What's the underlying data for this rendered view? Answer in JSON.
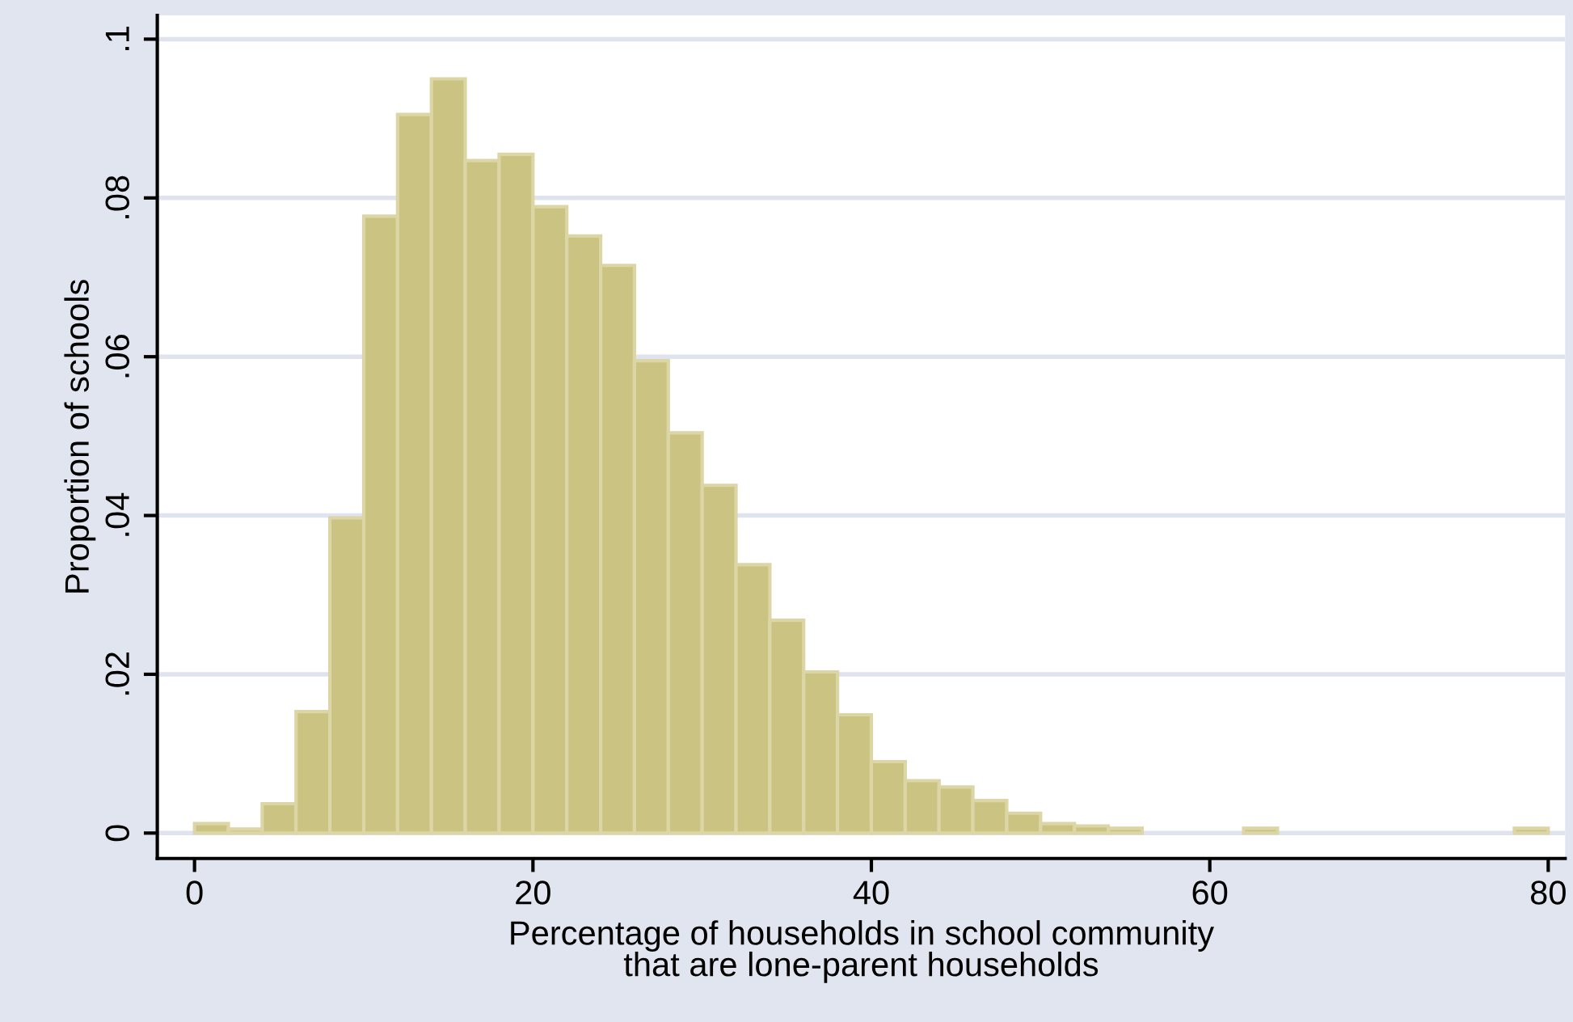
{
  "chart_data": {
    "type": "histogram",
    "xlabel": "Percentage of households in school community\nthat are lone-parent households",
    "ylabel": "Proportion of schools",
    "bins": [
      0,
      2,
      4,
      6,
      8,
      10,
      12,
      14,
      16,
      18,
      20,
      22,
      24,
      26,
      28,
      30,
      32,
      34,
      36,
      38,
      40,
      42,
      44,
      46,
      48,
      50,
      52,
      54,
      56,
      58,
      60,
      62,
      64,
      66,
      68,
      70,
      72,
      74,
      76,
      78,
      80
    ],
    "values": [
      0.0012,
      0.0005,
      0.0037,
      0.0153,
      0.0397,
      0.0777,
      0.0905,
      0.095,
      0.0847,
      0.0855,
      0.0789,
      0.0752,
      0.0715,
      0.0595,
      0.0504,
      0.0438,
      0.0338,
      0.0268,
      0.0203,
      0.0149,
      0.009,
      0.0066,
      0.0058,
      0.0041,
      0.0025,
      0.0012,
      0.0009,
      0.0006,
      0,
      0,
      0,
      0.0006,
      0,
      0,
      0,
      0,
      0,
      0,
      0,
      0.0006
    ],
    "color": "#cbc382",
    "xlim": [
      -2.2,
      81
    ],
    "xticks": [
      0,
      20,
      40,
      60,
      80
    ],
    "ylim": [
      -0.0032,
      0.103
    ],
    "yticks": [
      0,
      {
        "value": 0.02,
        "label": ".02"
      },
      {
        "value": 0.04,
        "label": ".04"
      },
      {
        "value": 0.06,
        "label": ".06"
      },
      {
        "value": 0.08,
        "label": ".08"
      },
      {
        "value": 0.1,
        "label": ".1"
      }
    ],
    "grid": "y",
    "legend": false
  }
}
